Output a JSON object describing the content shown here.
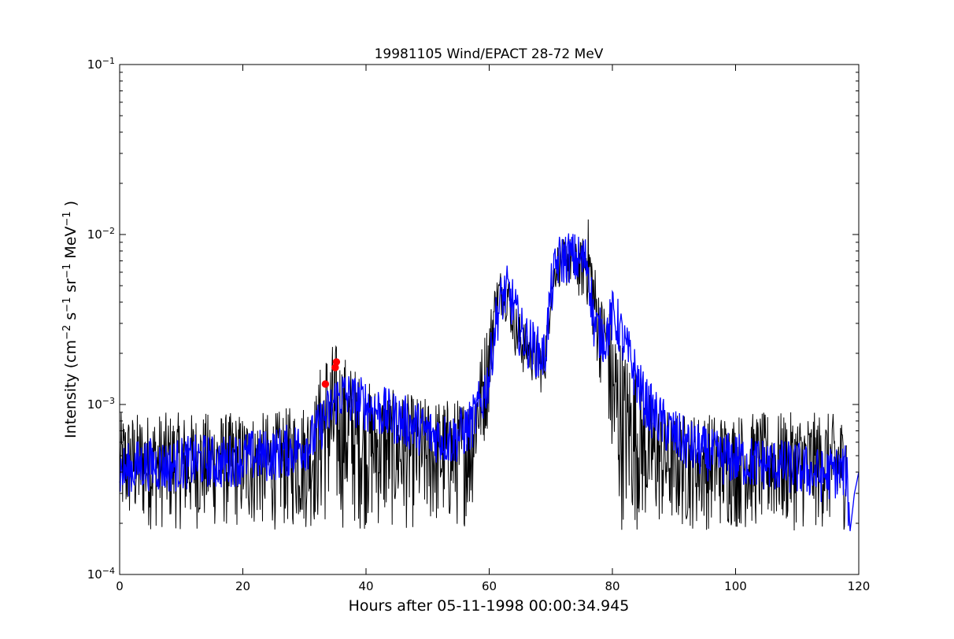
{
  "chart_data": {
    "type": "line",
    "title": "19981105 Wind/EPACT 28-72 MeV",
    "xlabel": "Hours after 05-11-1998 00:00:34.945",
    "ylabel": {
      "main": "Intensity (cm",
      "e1": "−2",
      "s": " s",
      "e2": "−1",
      "sr": " sr",
      "e3": "−1",
      "mev": " MeV",
      "e4": "−1",
      "close": " )"
    },
    "xlim": [
      0,
      120
    ],
    "ylim": [
      0.0001,
      0.1
    ],
    "yscale": "log",
    "grid": false,
    "x_ticks": [
      0,
      20,
      40,
      60,
      80,
      100,
      120
    ],
    "x_tick_labels": [
      "0",
      "20",
      "40",
      "60",
      "80",
      "100",
      "120"
    ],
    "y_ticks": [
      0.0001,
      0.001,
      0.01,
      0.1
    ],
    "y_tick_labels": [
      {
        "base": "10",
        "exp": "−4"
      },
      {
        "base": "10",
        "exp": "−3"
      },
      {
        "base": "10",
        "exp": "−2"
      },
      {
        "base": "10",
        "exp": "−1"
      }
    ],
    "envelope": {
      "x": [
        0,
        5,
        10,
        15,
        20,
        25,
        30,
        32,
        33,
        35,
        37,
        40,
        45,
        50,
        52,
        55,
        57,
        58,
        59,
        60,
        61,
        62,
        63,
        64,
        65,
        66,
        67,
        68,
        69,
        70,
        71,
        72,
        73,
        74,
        75,
        76,
        77,
        78,
        79,
        80,
        81,
        82,
        83,
        84,
        85,
        86,
        87,
        88,
        90,
        95,
        100,
        105,
        110,
        115,
        118,
        118.5
      ],
      "high": [
        0.0009,
        0.0009,
        0.0009,
        0.0009,
        0.0009,
        0.0009,
        0.00105,
        0.00125,
        0.0022,
        0.0024,
        0.0019,
        0.0014,
        0.0012,
        0.0011,
        0.0011,
        0.0011,
        0.0012,
        0.0016,
        0.0025,
        0.0035,
        0.0054,
        0.0065,
        0.0062,
        0.0042,
        0.0035,
        0.003,
        0.0028,
        0.0026,
        0.0024,
        0.006,
        0.0088,
        0.0095,
        0.0098,
        0.009,
        0.0092,
        0.0132,
        0.0075,
        0.0045,
        0.004,
        0.0037,
        0.003,
        0.0022,
        0.002,
        0.0017,
        0.0014,
        0.0012,
        0.0011,
        0.001,
        0.0009,
        0.0009,
        0.0009,
        0.0009,
        0.0009,
        0.0009,
        0.00085,
        0.00018
      ],
      "low": [
        0.00018,
        0.00018,
        0.00018,
        0.00018,
        0.00018,
        0.00018,
        0.00018,
        0.00018,
        0.00018,
        0.00018,
        0.00018,
        0.00018,
        0.00018,
        0.00018,
        0.00018,
        0.00018,
        0.0002,
        0.0004,
        0.0005,
        0.0008,
        0.0028,
        0.0032,
        0.003,
        0.002,
        0.0015,
        0.0014,
        0.0013,
        0.0011,
        0.0012,
        0.0032,
        0.005,
        0.0045,
        0.0048,
        0.0042,
        0.004,
        0.0035,
        0.002,
        0.0013,
        0.0014,
        0.00025,
        0.00018,
        0.00018,
        0.00018,
        0.00018,
        0.00018,
        0.00018,
        0.00018,
        0.00018,
        0.00018,
        0.00018,
        0.00018,
        0.00018,
        0.00018,
        0.00018,
        0.00018,
        0.00018
      ]
    },
    "series": [
      {
        "color": "#0000ff",
        "x": [
          0,
          2,
          4,
          6,
          8,
          10,
          12,
          14,
          16,
          18,
          20,
          22,
          24,
          26,
          28,
          30,
          31,
          32,
          33,
          34,
          35,
          36,
          37,
          38,
          40,
          42,
          44,
          46,
          48,
          50,
          52,
          54,
          55,
          56,
          57,
          58,
          59,
          60,
          61,
          62,
          63,
          64,
          65,
          66,
          67,
          68,
          69,
          70,
          71,
          72,
          73,
          74,
          75,
          76,
          77,
          78,
          79,
          80,
          81,
          82,
          83,
          84,
          85,
          86,
          87,
          88,
          90,
          92,
          94,
          96,
          98,
          100,
          102,
          104,
          106,
          108,
          110,
          112,
          114,
          116,
          118,
          118.6,
          119.3,
          120
        ],
        "y": [
          0.0004,
          0.00042,
          0.00045,
          0.00044,
          0.00043,
          0.00045,
          0.00046,
          0.00047,
          0.00045,
          0.00047,
          0.00048,
          0.0005,
          0.0005,
          0.00052,
          0.00054,
          0.00058,
          0.0006,
          0.00068,
          0.0008,
          0.0009,
          0.00105,
          0.00115,
          0.0011,
          0.00105,
          0.001,
          0.00092,
          0.00085,
          0.0008,
          0.00074,
          0.00068,
          0.00064,
          0.00062,
          0.00066,
          0.0007,
          0.00075,
          0.0009,
          0.0011,
          0.0015,
          0.003,
          0.0042,
          0.0046,
          0.0038,
          0.0027,
          0.0024,
          0.0022,
          0.002,
          0.0019,
          0.0045,
          0.0068,
          0.0072,
          0.0074,
          0.0071,
          0.007,
          0.0069,
          0.003,
          0.0026,
          0.0025,
          0.0033,
          0.0029,
          0.0022,
          0.0018,
          0.0014,
          0.0011,
          0.00095,
          0.00085,
          0.00078,
          0.00066,
          0.00058,
          0.00054,
          0.0005,
          0.00048,
          0.00048,
          0.00046,
          0.00045,
          0.00044,
          0.00043,
          0.00042,
          0.0004,
          0.00038,
          0.0004,
          0.0004,
          0.00018,
          0.0003,
          0.0004
        ]
      }
    ],
    "markers": {
      "color": "#ff0000",
      "x": [
        33.4,
        35.0,
        35.2
      ],
      "y": [
        0.00132,
        0.00165,
        0.00178
      ]
    }
  }
}
